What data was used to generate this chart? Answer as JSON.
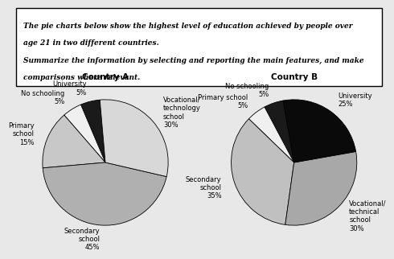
{
  "text_line1": "The pie charts below show the highest level of education achieved by people over",
  "text_line2": "age 21 in two different countries.",
  "text_line3": "Summarize the information by selecting and reporting the main features, and make",
  "text_line4": "comparisons where relevant.",
  "country_a": {
    "title": "Country A",
    "labels": [
      "University\n5%",
      "No schooling\n5%",
      "Primary\nschool\n15%",
      "Secondary\nschool\n45%",
      "Vocational/\ntechnology\nschool\n30%"
    ],
    "values": [
      5,
      5,
      15,
      45,
      30
    ],
    "colors": [
      "#1a1a1a",
      "#f0f0f0",
      "#c8c8c8",
      "#b0b0b0",
      "#d8d8d8"
    ],
    "startangle": 95
  },
  "country_b": {
    "title": "Country B",
    "labels": [
      "No schooling\n5%",
      "Primary school\n5%",
      "Secondary\nschool\n35%",
      "Vocational/\ntechnical\nschool\n30%",
      "University\n25%"
    ],
    "values": [
      5,
      5,
      35,
      30,
      25
    ],
    "colors": [
      "#1a1a1a",
      "#f0f0f0",
      "#c0c0c0",
      "#a8a8a8",
      "#0a0a0a"
    ],
    "startangle": 100
  },
  "background_color": "#e8e8e8",
  "title_fontsize": 7.5,
  "label_fontsize": 6.0,
  "text_fontsize": 6.5
}
